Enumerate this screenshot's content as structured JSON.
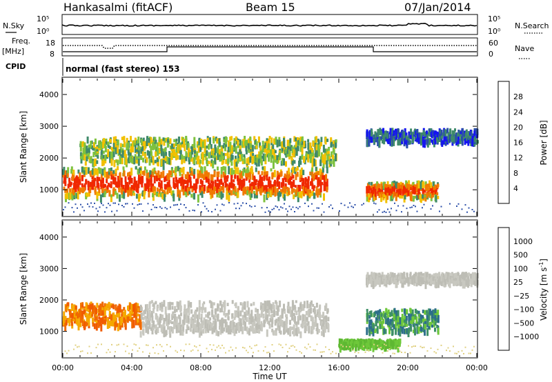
{
  "header": {
    "station": "Hankasalmi (fitACF)",
    "beam": "Beam 15",
    "date": "07/Jan/2014"
  },
  "top_panels": {
    "nsky_label": "N.Sky",
    "nsky_ticks": [
      "10^5",
      "10^0"
    ],
    "nsearch_label": "N.Search",
    "nsearch_ticks": [
      "10^5",
      "10^0"
    ],
    "freq_label": "Freq.",
    "freq_unit": "[MHz]",
    "freq_ticks": [
      "18",
      "8"
    ],
    "nave_label": "Nave",
    "nave_ticks": [
      "60",
      "0"
    ],
    "cpid_label": "CPID",
    "cpid_value": "normal (fast stereo) 153"
  },
  "chart_data": [
    {
      "type": "heatmap",
      "name": "power",
      "ylabel": "Slant Range [km]",
      "xlabel": "",
      "ylim": [
        180,
        4500
      ],
      "yticks": [
        "4000",
        "3000",
        "2000",
        "1000"
      ],
      "colorbar_label": "Power [dB]",
      "colorbar_ticks": [
        "28",
        "24",
        "20",
        "16",
        "12",
        "8",
        "4"
      ],
      "colorbar_colors": [
        "#1515f0",
        "#2a4ea8",
        "#3f8a6a",
        "#7ec23e",
        "#f2c000",
        "#f07a00",
        "#f02800",
        "#e80000"
      ],
      "features": [
        {
          "t_start": 0.0,
          "t_end": 15.3,
          "range_center": 1300,
          "range_width": 900,
          "level": "high"
        },
        {
          "t_start": 17.6,
          "t_end": 21.7,
          "range_center": 1050,
          "range_width": 500,
          "level": "high"
        },
        {
          "t_start": 1.0,
          "t_end": 15.8,
          "range_center": 2300,
          "range_width": 800,
          "level": "mid"
        },
        {
          "t_start": 17.6,
          "t_end": 24.0,
          "range_center": 2750,
          "range_width": 400,
          "level": "low"
        }
      ]
    },
    {
      "type": "heatmap",
      "name": "velocity",
      "ylabel": "Slant Range [km]",
      "xlabel": "Time UT",
      "ylim": [
        180,
        4500
      ],
      "yticks": [
        "4000",
        "3000",
        "2000",
        "1000"
      ],
      "xticks": [
        "00:00",
        "04:00",
        "08:00",
        "12:00",
        "16:00",
        "20:00",
        "00:00"
      ],
      "xlim_hours": [
        0,
        24
      ],
      "colorbar_label": "Velocity [m s",
      "colorbar_label_sup": "-1",
      "colorbar_label_end": "]",
      "colorbar_ticks": [
        "1000",
        "500",
        "100",
        "25",
        "−25",
        "−100",
        "−500",
        "−1000"
      ],
      "colorbar_colors": [
        "#1d3ea8",
        "#2c6e8a",
        "#3e9066",
        "#6ec83a",
        "#c8c8c0",
        "#f5a800",
        "#f06a00",
        "#e82000"
      ],
      "features": [
        {
          "t_start": 0.0,
          "t_end": 4.5,
          "range_center": 1600,
          "range_width": 700,
          "color": "orange"
        },
        {
          "t_start": 4.5,
          "t_end": 15.3,
          "range_center": 1500,
          "range_width": 1000,
          "color": "grey"
        },
        {
          "t_start": 17.6,
          "t_end": 21.7,
          "range_center": 1400,
          "range_width": 700,
          "color": "darkgreen"
        },
        {
          "t_start": 16.0,
          "t_end": 19.5,
          "range_center": 680,
          "range_width": 200,
          "color": "lightgreen"
        },
        {
          "t_start": 17.6,
          "t_end": 24.0,
          "range_center": 2750,
          "range_width": 300,
          "color": "grey"
        }
      ]
    }
  ]
}
